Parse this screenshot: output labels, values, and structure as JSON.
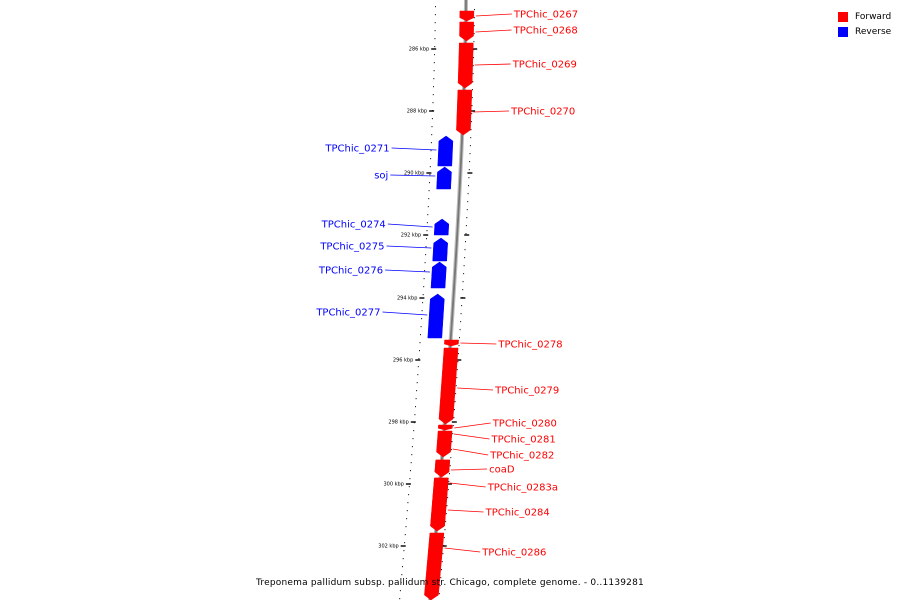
{
  "legend": {
    "forward_label": "Forward",
    "reverse_label": "Reverse",
    "forward_color": "#ff0000",
    "reverse_color": "#0000ff"
  },
  "caption": "Treponema pallidum subsp. pallidum str. Chicago, complete genome. - 0..1139281",
  "axis": {
    "ticks": [
      "286 kbp",
      "288 kbp",
      "290 kbp",
      "292 kbp",
      "294 kbp",
      "296 kbp",
      "298 kbp",
      "300 kbp",
      "302 kbp"
    ]
  },
  "genes": [
    {
      "name": "TPChic_0267",
      "strand": "forward"
    },
    {
      "name": "TPChic_0268",
      "strand": "forward"
    },
    {
      "name": "TPChic_0269",
      "strand": "forward"
    },
    {
      "name": "TPChic_0270",
      "strand": "forward"
    },
    {
      "name": "TPChic_0271",
      "strand": "reverse"
    },
    {
      "name": "soj",
      "strand": "reverse"
    },
    {
      "name": "TPChic_0274",
      "strand": "reverse"
    },
    {
      "name": "TPChic_0275",
      "strand": "reverse"
    },
    {
      "name": "TPChic_0276",
      "strand": "reverse"
    },
    {
      "name": "TPChic_0277",
      "strand": "reverse"
    },
    {
      "name": "TPChic_0278",
      "strand": "forward"
    },
    {
      "name": "TPChic_0279",
      "strand": "forward"
    },
    {
      "name": "TPChic_0280",
      "strand": "forward"
    },
    {
      "name": "TPChic_0281",
      "strand": "forward"
    },
    {
      "name": "TPChic_0282",
      "strand": "forward"
    },
    {
      "name": "coaD",
      "strand": "forward"
    },
    {
      "name": "TPChic_0283a",
      "strand": "forward"
    },
    {
      "name": "TPChic_0284",
      "strand": "forward"
    },
    {
      "name": "TPChic_0286",
      "strand": "forward"
    }
  ]
}
